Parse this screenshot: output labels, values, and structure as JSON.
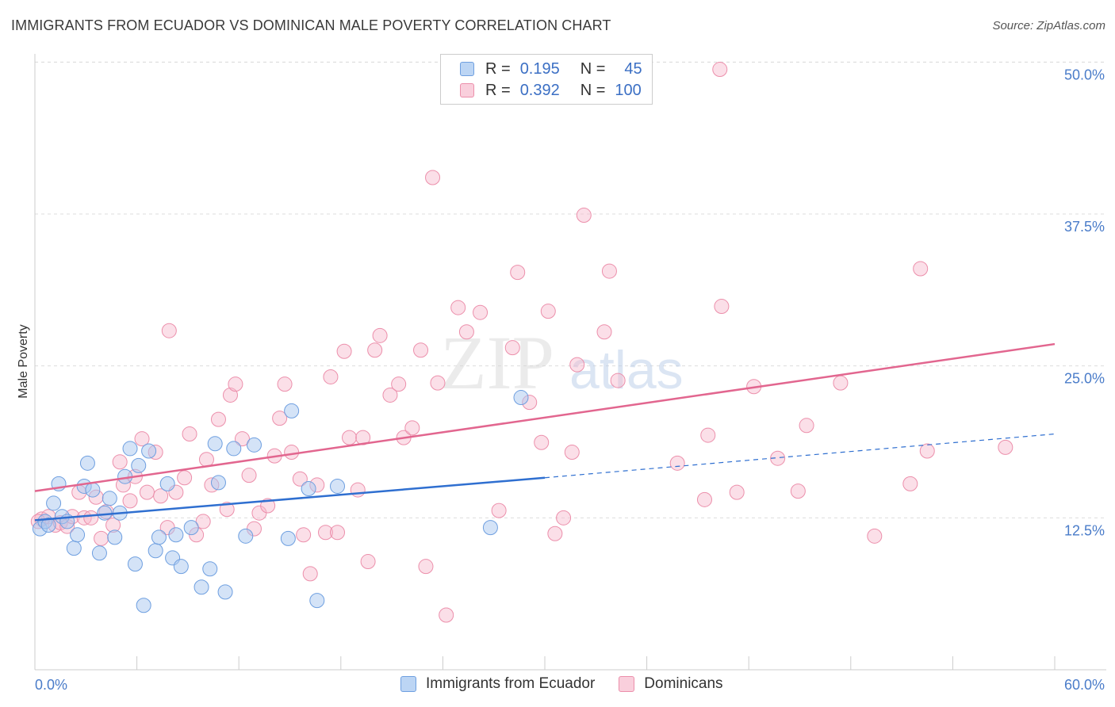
{
  "title": "IMMIGRANTS FROM ECUADOR VS DOMINICAN MALE POVERTY CORRELATION CHART",
  "source": "Source: ZipAtlas.com",
  "watermark": {
    "zip": "ZIP",
    "atlas": "atlas"
  },
  "legend": {
    "rows": [
      {
        "r_label": "R =",
        "r_value": "0.195",
        "n_label": "N =",
        "n_value": "45",
        "color": "#a9c8f0"
      },
      {
        "r_label": "R =",
        "r_value": "0.392",
        "n_label": "N =",
        "n_value": "100",
        "color": "#f6b8cb"
      }
    ]
  },
  "bottom_legend": {
    "series1": "Immigrants from Ecuador",
    "series2": "Dominicans"
  },
  "colors": {
    "ecuador_fill": "#a9c8f0",
    "ecuador_stroke": "#6e9fe0",
    "ecuador_line": "#2f6fd0",
    "dominican_fill": "#f6b8cb",
    "dominican_stroke": "#ec8fab",
    "dominican_line": "#e2668f",
    "axis_tick_color": "#4a7cc9",
    "grid_color": "#dddddd"
  },
  "chart_data": {
    "type": "scatter",
    "title": "IMMIGRANTS FROM ECUADOR VS DOMINICAN MALE POVERTY CORRELATION CHART",
    "xlabel": "",
    "ylabel": "Male Poverty",
    "xlim": [
      0,
      60
    ],
    "ylim": [
      0,
      50
    ],
    "x_tick_labels": [
      "0.0%",
      "60.0%"
    ],
    "y_ticks": [
      12.5,
      25.0,
      37.5,
      50.0
    ],
    "y_tick_labels": [
      "12.5%",
      "25.0%",
      "37.5%",
      "50.0%"
    ],
    "grid": "horizontal dashed",
    "legend_placement": "top-center",
    "series": [
      {
        "name": "Immigrants from Ecuador",
        "color": "#a9c8f0",
        "points": [
          [
            0.3,
            11.6
          ],
          [
            0.6,
            12.2
          ],
          [
            0.8,
            11.9
          ],
          [
            1.1,
            13.7
          ],
          [
            1.4,
            15.3
          ],
          [
            1.6,
            12.6
          ],
          [
            1.9,
            12.2
          ],
          [
            2.3,
            10.0
          ],
          [
            2.5,
            11.1
          ],
          [
            2.9,
            15.1
          ],
          [
            3.1,
            17.0
          ],
          [
            3.4,
            14.8
          ],
          [
            3.8,
            9.6
          ],
          [
            4.1,
            12.9
          ],
          [
            4.4,
            14.1
          ],
          [
            4.7,
            10.9
          ],
          [
            5.0,
            12.9
          ],
          [
            5.3,
            15.9
          ],
          [
            5.6,
            18.2
          ],
          [
            5.9,
            8.7
          ],
          [
            6.1,
            16.8
          ],
          [
            6.4,
            5.3
          ],
          [
            6.7,
            18.0
          ],
          [
            7.1,
            9.8
          ],
          [
            7.3,
            10.9
          ],
          [
            7.8,
            15.3
          ],
          [
            8.1,
            9.2
          ],
          [
            8.3,
            11.1
          ],
          [
            8.6,
            8.5
          ],
          [
            9.2,
            11.7
          ],
          [
            9.8,
            6.8
          ],
          [
            10.3,
            8.3
          ],
          [
            10.8,
            15.4
          ],
          [
            10.6,
            18.6
          ],
          [
            11.2,
            6.4
          ],
          [
            11.7,
            18.2
          ],
          [
            12.4,
            11.0
          ],
          [
            12.9,
            18.5
          ],
          [
            14.9,
            10.8
          ],
          [
            15.1,
            21.3
          ],
          [
            16.1,
            14.9
          ],
          [
            16.6,
            5.7
          ],
          [
            17.8,
            15.1
          ],
          [
            26.8,
            11.7
          ],
          [
            28.6,
            22.4
          ]
        ]
      },
      {
        "name": "Dominicans",
        "color": "#f6b8cb",
        "points": [
          [
            0.4,
            12.4
          ],
          [
            0.8,
            12.6
          ],
          [
            1.2,
            11.9
          ],
          [
            1.5,
            12.1
          ],
          [
            1.9,
            11.8
          ],
          [
            2.2,
            12.6
          ],
          [
            2.6,
            14.6
          ],
          [
            2.9,
            12.5
          ],
          [
            3.3,
            12.5
          ],
          [
            3.6,
            14.2
          ],
          [
            3.9,
            10.8
          ],
          [
            4.2,
            13.0
          ],
          [
            4.6,
            11.9
          ],
          [
            5.0,
            17.1
          ],
          [
            5.2,
            15.2
          ],
          [
            5.6,
            13.9
          ],
          [
            5.9,
            15.9
          ],
          [
            6.3,
            19.0
          ],
          [
            6.6,
            14.6
          ],
          [
            7.1,
            17.9
          ],
          [
            7.4,
            14.3
          ],
          [
            7.8,
            11.7
          ],
          [
            7.9,
            27.9
          ],
          [
            8.3,
            14.6
          ],
          [
            8.8,
            15.8
          ],
          [
            9.1,
            19.4
          ],
          [
            9.5,
            11.1
          ],
          [
            9.9,
            12.2
          ],
          [
            10.1,
            17.3
          ],
          [
            10.4,
            15.2
          ],
          [
            10.8,
            20.6
          ],
          [
            11.3,
            13.2
          ],
          [
            11.5,
            22.6
          ],
          [
            11.8,
            23.5
          ],
          [
            12.2,
            19.0
          ],
          [
            12.6,
            16.0
          ],
          [
            12.9,
            11.6
          ],
          [
            13.2,
            12.9
          ],
          [
            13.7,
            13.5
          ],
          [
            14.1,
            17.6
          ],
          [
            14.4,
            20.7
          ],
          [
            14.7,
            23.5
          ],
          [
            15.1,
            17.9
          ],
          [
            15.6,
            15.7
          ],
          [
            15.8,
            11.1
          ],
          [
            16.2,
            7.9
          ],
          [
            16.6,
            15.2
          ],
          [
            17.1,
            11.3
          ],
          [
            17.4,
            24.1
          ],
          [
            17.8,
            11.3
          ],
          [
            18.2,
            26.2
          ],
          [
            18.5,
            19.1
          ],
          [
            19.0,
            14.8
          ],
          [
            19.3,
            19.1
          ],
          [
            19.6,
            8.9
          ],
          [
            20.0,
            26.3
          ],
          [
            20.3,
            27.5
          ],
          [
            20.9,
            22.6
          ],
          [
            21.4,
            23.5
          ],
          [
            21.7,
            19.1
          ],
          [
            22.2,
            19.9
          ],
          [
            22.7,
            26.3
          ],
          [
            23.0,
            8.5
          ],
          [
            23.4,
            40.5
          ],
          [
            23.7,
            23.6
          ],
          [
            24.2,
            4.5
          ],
          [
            24.9,
            29.8
          ],
          [
            25.4,
            27.8
          ],
          [
            26.2,
            29.4
          ],
          [
            27.3,
            13.1
          ],
          [
            28.1,
            26.5
          ],
          [
            28.4,
            32.7
          ],
          [
            29.1,
            22.0
          ],
          [
            29.8,
            18.7
          ],
          [
            30.2,
            29.5
          ],
          [
            30.6,
            11.2
          ],
          [
            31.1,
            12.5
          ],
          [
            31.6,
            17.9
          ],
          [
            31.9,
            25.1
          ],
          [
            32.3,
            37.4
          ],
          [
            33.5,
            27.8
          ],
          [
            33.8,
            32.8
          ],
          [
            34.3,
            23.8
          ],
          [
            37.8,
            17.0
          ],
          [
            39.4,
            14.0
          ],
          [
            39.6,
            19.3
          ],
          [
            40.3,
            49.4
          ],
          [
            40.4,
            29.9
          ],
          [
            41.3,
            14.6
          ],
          [
            42.3,
            23.3
          ],
          [
            43.7,
            17.4
          ],
          [
            44.9,
            14.7
          ],
          [
            45.4,
            20.1
          ],
          [
            47.4,
            23.6
          ],
          [
            49.4,
            11.0
          ],
          [
            51.5,
            15.3
          ],
          [
            52.1,
            33.0
          ],
          [
            52.5,
            18.0
          ],
          [
            57.1,
            18.3
          ],
          [
            0.2,
            12.2
          ]
        ]
      }
    ],
    "trend_lines": [
      {
        "series": "Immigrants from Ecuador",
        "x0": 0,
        "y0": 12.3,
        "x1": 30,
        "y1": 15.8,
        "dashed_to_x": 60,
        "dashed_to_y": 19.4
      },
      {
        "series": "Dominicans",
        "x0": 0,
        "y0": 14.7,
        "x1": 60,
        "y1": 26.8
      }
    ]
  }
}
